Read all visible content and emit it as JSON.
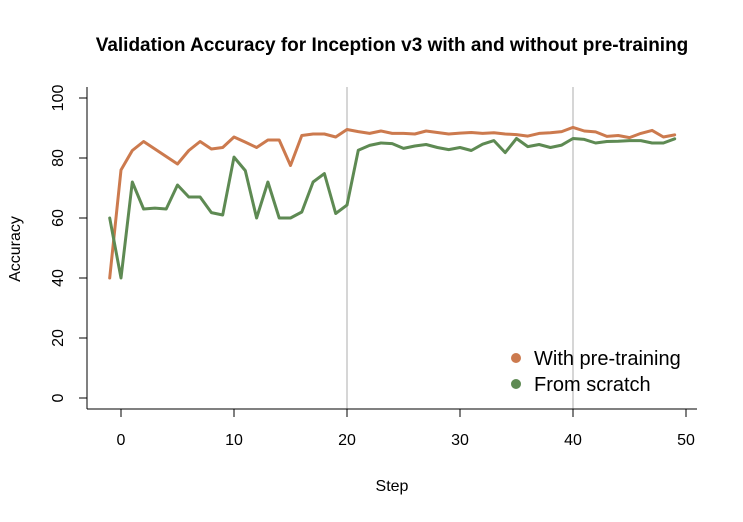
{
  "chart_data": {
    "type": "line",
    "title": "Validation Accuracy for Inception v3 with and without pre-training",
    "xlabel": "Step",
    "ylabel": "Accuracy",
    "xlim": [
      -1,
      50
    ],
    "ylim": [
      0,
      100
    ],
    "xticks": [
      0,
      10,
      20,
      30,
      40,
      50
    ],
    "yticks": [
      0,
      20,
      40,
      60,
      80,
      100
    ],
    "grid": false,
    "vlines": [
      20,
      40
    ],
    "legend_position": "bottom-right",
    "x": [
      -1,
      0,
      1,
      2,
      3,
      4,
      5,
      6,
      7,
      8,
      9,
      10,
      11,
      12,
      13,
      14,
      15,
      16,
      17,
      18,
      19,
      20,
      21,
      22,
      23,
      24,
      25,
      26,
      27,
      28,
      29,
      30,
      31,
      32,
      33,
      34,
      35,
      36,
      37,
      38,
      39,
      40,
      41,
      42,
      43,
      44,
      45,
      46,
      47,
      48,
      49
    ],
    "series": [
      {
        "name": "With pre-training",
        "color": "#cc7a4e",
        "values": [
          40,
          76,
          82.5,
          85.5,
          83,
          80.5,
          78,
          82.5,
          85.5,
          83,
          83.5,
          87,
          85.3,
          83.5,
          86,
          86,
          77.5,
          87.5,
          88,
          88,
          87,
          89.5,
          88.8,
          88.2,
          89,
          88.2,
          88.2,
          88,
          89,
          88.5,
          88,
          88.3,
          88.5,
          88.2,
          88.4,
          88,
          87.8,
          87.3,
          88.2,
          88.4,
          88.8,
          90.2,
          89,
          88.7,
          87.2,
          87.5,
          86.8,
          88.2,
          89.2,
          87,
          87.7
        ]
      },
      {
        "name": "From scratch",
        "color": "#5e8a53",
        "values": [
          60,
          40,
          72,
          63,
          63.3,
          63,
          71,
          67,
          67,
          61.8,
          61,
          80.3,
          75.8,
          60,
          72,
          60,
          60,
          62,
          72,
          74.8,
          61.5,
          64.3,
          82.6,
          84.2,
          85,
          84.8,
          83.2,
          84,
          84.5,
          83.5,
          82.8,
          83.5,
          82.5,
          84.6,
          85.8,
          81.8,
          86.5,
          83.8,
          84.5,
          83.5,
          84.3,
          86.5,
          86.2,
          85,
          85.5,
          85.6,
          85.8,
          85.8,
          85,
          85,
          86.4
        ]
      }
    ]
  }
}
